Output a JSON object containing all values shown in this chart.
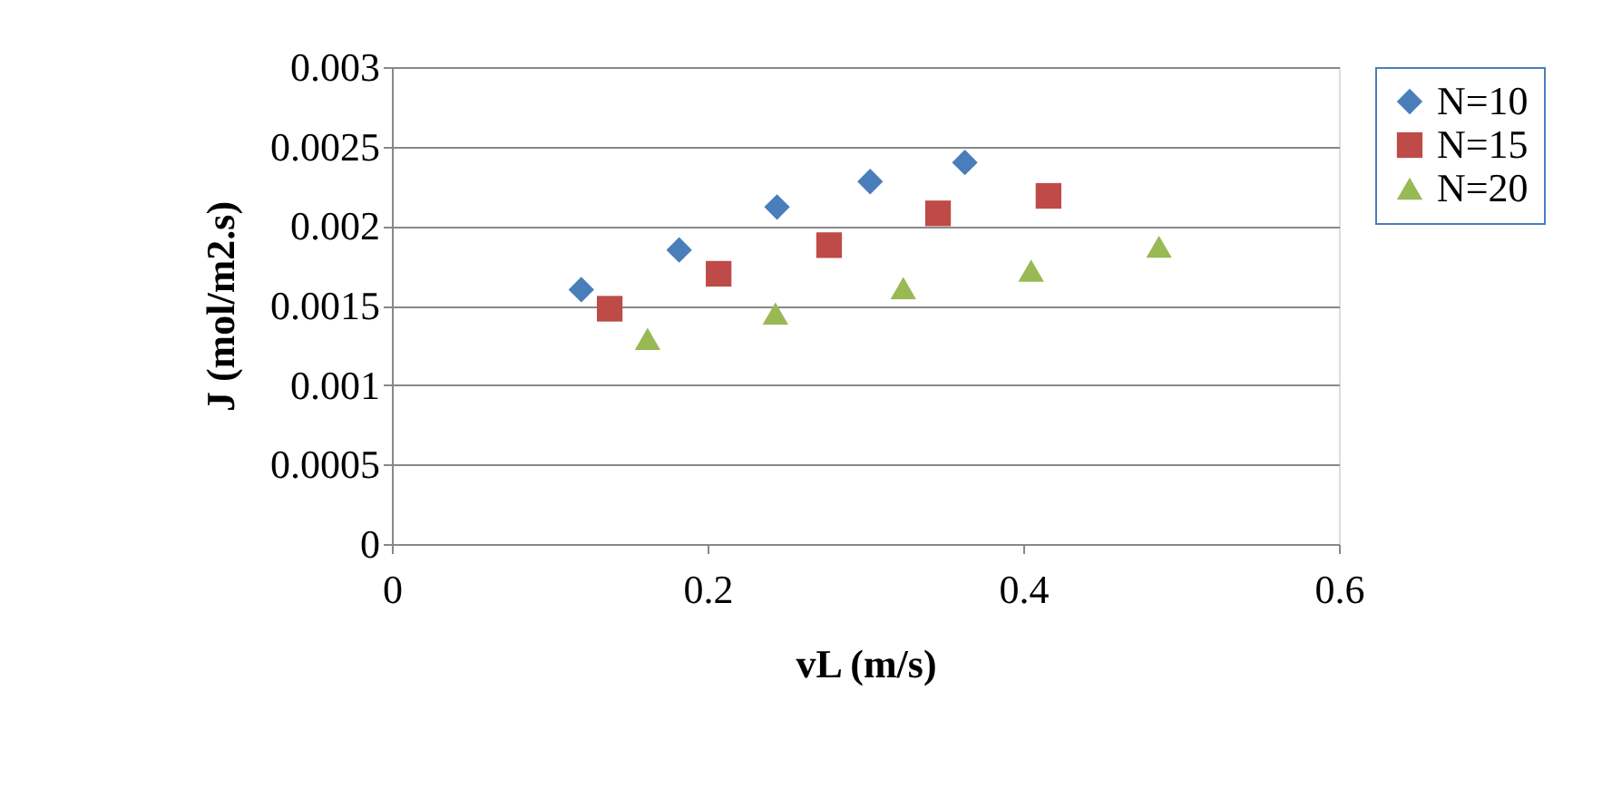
{
  "chart_data": {
    "type": "scatter",
    "xlabel": "vL (m/s)",
    "ylabel": "J (mol/m2.s)",
    "xlim": [
      0,
      0.6
    ],
    "xticks": [
      0,
      0.2,
      0.4,
      0.6
    ],
    "ylim": [
      0,
      0.003
    ],
    "yticks": [
      0,
      0.0005,
      0.001,
      0.0015,
      0.002,
      0.0025,
      0.003
    ],
    "grid": "y",
    "legend": "right",
    "series": [
      {
        "name": "N=10",
        "color": "#4a7ebb",
        "marker": "diamond",
        "x": [
          0.12,
          0.182,
          0.244,
          0.303,
          0.363
        ],
        "values": [
          0.0016,
          0.00185,
          0.00212,
          0.00228,
          0.0024
        ]
      },
      {
        "name": "N=15",
        "color": "#be4b48",
        "marker": "square",
        "x": [
          0.138,
          0.207,
          0.277,
          0.346,
          0.416
        ],
        "values": [
          0.00148,
          0.0017,
          0.00188,
          0.00208,
          0.00219
        ]
      },
      {
        "name": "N=20",
        "color": "#98b954",
        "marker": "triangle",
        "x": [
          0.162,
          0.243,
          0.324,
          0.405,
          0.486
        ],
        "values": [
          0.00129,
          0.00145,
          0.00161,
          0.00172,
          0.00187
        ]
      }
    ]
  }
}
